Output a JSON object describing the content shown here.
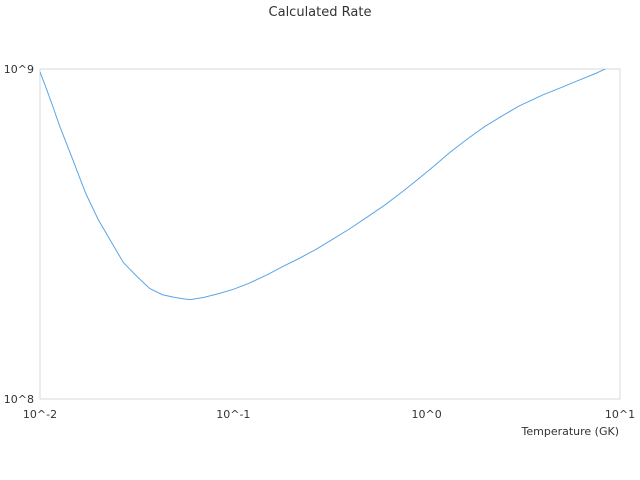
{
  "chart_data": {
    "type": "line",
    "title": "Calculated Rate",
    "xlabel": "Temperature (GK)",
    "ylabel": "",
    "x_scale": "log",
    "y_scale": "log",
    "xlim": [
      0.01,
      10
    ],
    "ylim": [
      100000000,
      1000000000
    ],
    "x_ticks": [
      "10^-2",
      "10^-1",
      "10^0",
      "10^1"
    ],
    "y_ticks": [
      "10^9",
      "10^8"
    ],
    "grid": false,
    "legend": "none",
    "series": [
      {
        "color": "#5aa5e6",
        "x": [
          0.01,
          0.0108,
          0.0117,
          0.0126,
          0.0137,
          0.0148,
          0.016,
          0.0173,
          0.02,
          0.023,
          0.027,
          0.032,
          0.037,
          0.043,
          0.05,
          0.056,
          0.06,
          0.07,
          0.085,
          0.1,
          0.12,
          0.15,
          0.18,
          0.22,
          0.27,
          0.33,
          0.4,
          0.5,
          0.6,
          0.75,
          0.9,
          1.1,
          1.3,
          1.6,
          2.0,
          2.5,
          3.0,
          4.0,
          5.0,
          6.0,
          7.5,
          9.0
        ],
        "values": [
          980000000,
          870000000,
          765000000,
          675000000,
          595000000,
          530000000,
          470000000,
          418000000,
          350000000,
          304000000,
          259000000,
          234000000,
          216000000,
          207000000,
          203000000,
          201000000,
          200000000,
          203000000,
          209000000,
          215000000,
          224000000,
          238000000,
          252000000,
          267000000,
          285000000,
          306000000,
          328000000,
          358000000,
          385000000,
          425000000,
          463000000,
          510000000,
          555000000,
          610000000,
          670000000,
          725000000,
          772000000,
          835000000,
          880000000,
          920000000,
          970000000,
          1020000000
        ]
      }
    ]
  }
}
